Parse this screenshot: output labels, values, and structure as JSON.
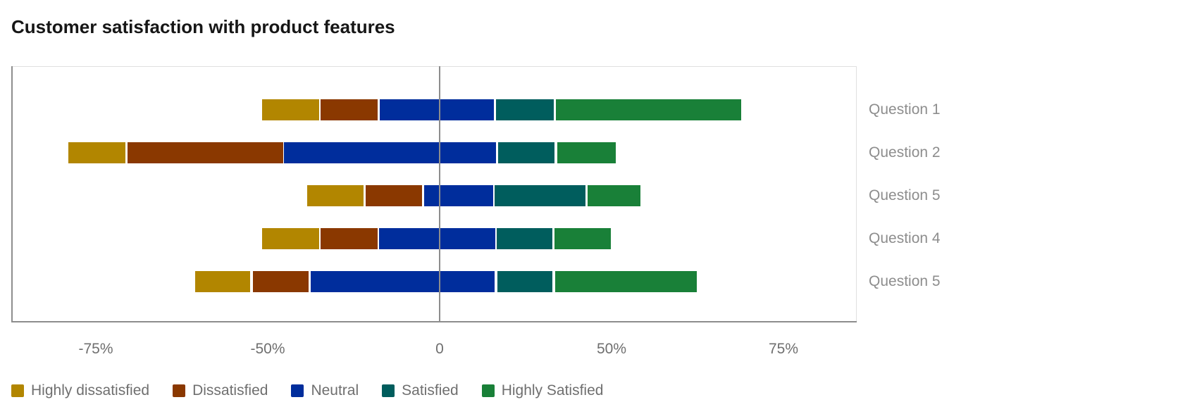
{
  "page": {
    "background": "#ffffff"
  },
  "chart_data": {
    "type": "bar",
    "variant": "horizontal-diverging-stacked",
    "title": "Customer satisfaction with product features",
    "categories": [
      "Question 1",
      "Question 2",
      "Question 5",
      "Question 4",
      "Question 5"
    ],
    "x_axis": {
      "tick_labels": [
        "-75%",
        "-50%",
        "0",
        "50%",
        "75%"
      ],
      "tick_spacing": "even",
      "unit": "percent",
      "zero_reference_line": true
    },
    "grid": "off",
    "legend_position": "bottom",
    "category_labels_position": "right",
    "series": [
      {
        "name": "Highly dissatisfied",
        "color": "#b28600",
        "segments": [
          [
            -51.2,
            -34.8
          ],
          [
            -107.1,
            -90.7
          ],
          [
            -38.2,
            -22.0
          ],
          [
            -51.2,
            -34.8
          ],
          [
            -70.5,
            -54.7
          ]
        ]
      },
      {
        "name": "Dissatisfied",
        "color": "#8a3800",
        "segments": [
          [
            -34.3,
            -17.9
          ],
          [
            -90.0,
            -45.1
          ],
          [
            -21.3,
            -5.1
          ],
          [
            -34.3,
            -17.9
          ],
          [
            -53.9,
            -37.8
          ]
        ]
      },
      {
        "name": "Neutral",
        "color": "#002d9c",
        "segments": [
          [
            -17.3,
            15.7
          ],
          [
            -44.9,
            16.3
          ],
          [
            -4.5,
            15.4
          ],
          [
            -17.5,
            16.1
          ],
          [
            -37.2,
            15.9
          ]
        ]
      },
      {
        "name": "Satisfied",
        "color": "#005d5d",
        "segments": [
          [
            16.3,
            32.9
          ],
          [
            16.9,
            33.1
          ],
          [
            15.9,
            42.1
          ],
          [
            16.5,
            32.5
          ],
          [
            16.7,
            32.5
          ]
        ]
      },
      {
        "name": "Highly Satisfied",
        "color": "#198038",
        "segments": [
          [
            33.5,
            87.0
          ],
          [
            33.9,
            50.8
          ],
          [
            42.7,
            57.9
          ],
          [
            33.1,
            49.4
          ],
          [
            33.3,
            74.2
          ]
        ]
      }
    ],
    "legend": {
      "items": [
        {
          "label": "Highly dissatisfied",
          "color": "#b28600"
        },
        {
          "label": "Dissatisfied",
          "color": "#8a3800"
        },
        {
          "label": "Neutral",
          "color": "#002d9c"
        },
        {
          "label": "Satisfied",
          "color": "#005d5d"
        },
        {
          "label": "Highly Satisfied",
          "color": "#198038"
        }
      ]
    },
    "style_colors": {
      "axis_line": "#8d8d8d",
      "chart_border": "#e0e0e0",
      "zero_line": "#8d8d8d",
      "tick_text": "#6f6f6f",
      "category_text": "#8d8d8d",
      "legend_text": "#6f6f6f",
      "title_text": "#161616"
    }
  }
}
